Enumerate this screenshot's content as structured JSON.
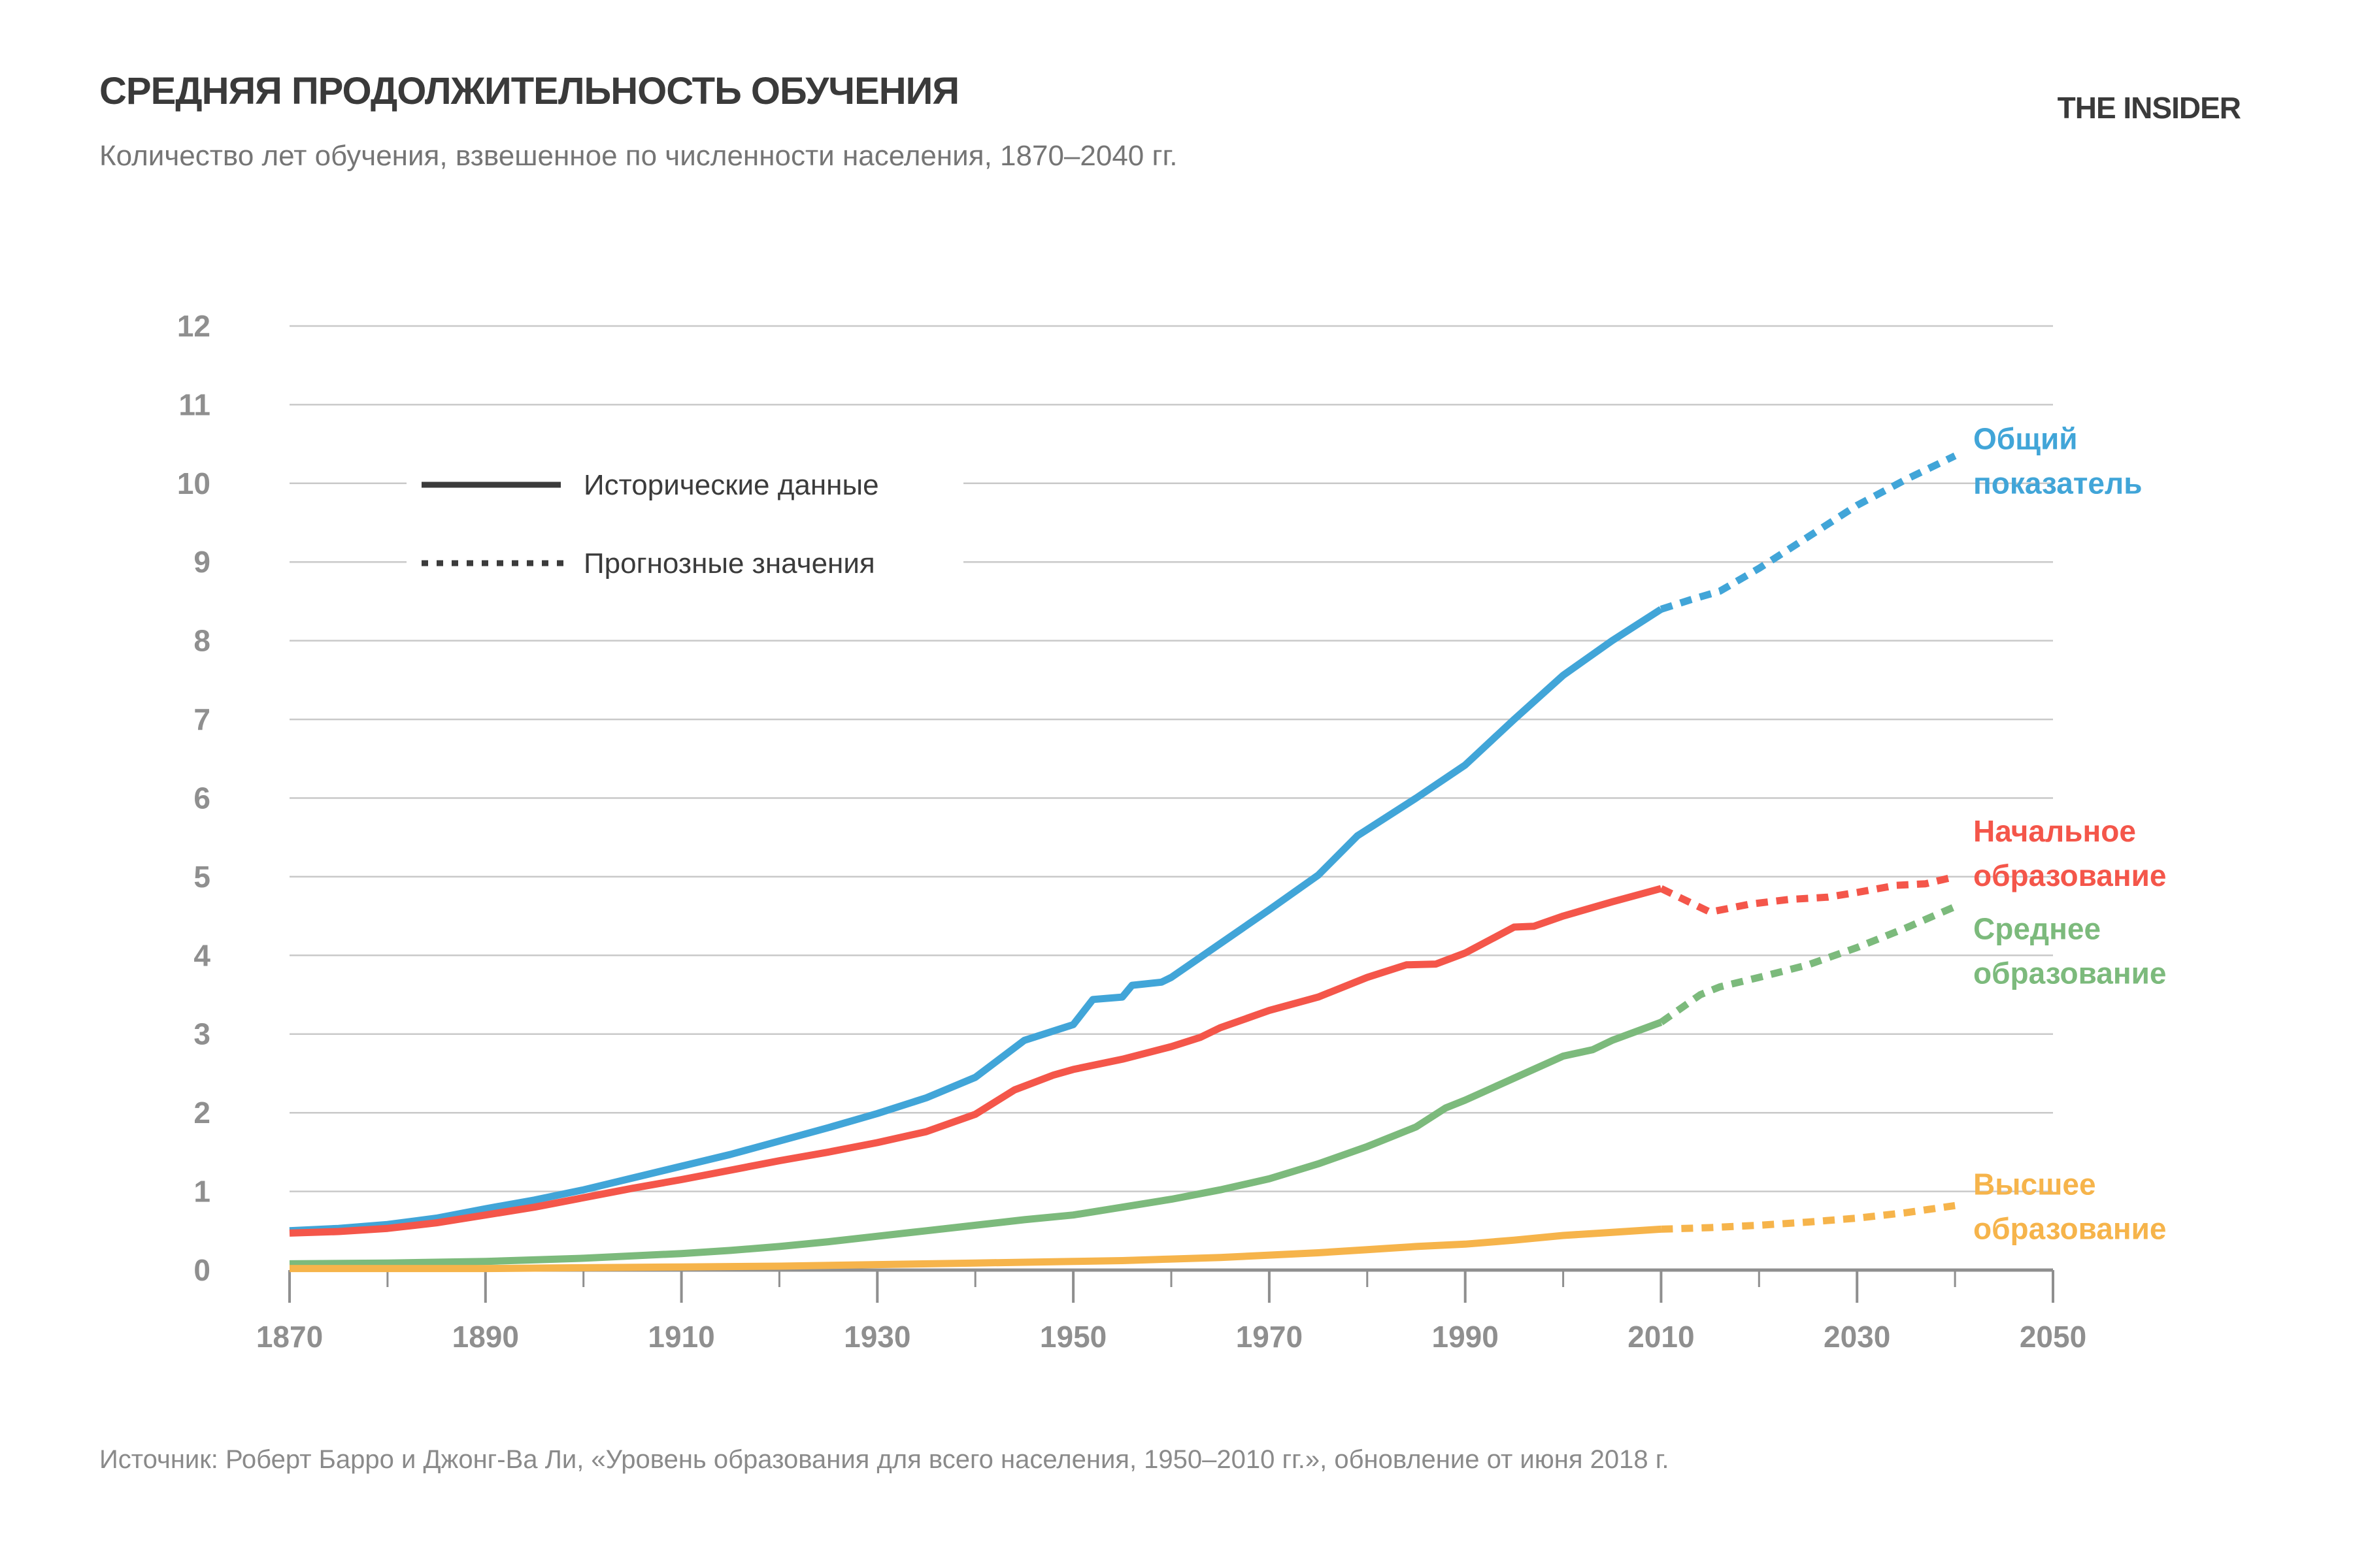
{
  "header": {
    "title": "СРЕДНЯЯ ПРОДОЛЖИТЕЛЬНОСТЬ ОБУЧЕНИЯ",
    "subtitle": "Количество лет обучения, взвешенное по численности населения, 1870–2040 гг.",
    "logo": "THE INSIDER"
  },
  "legend": {
    "historical": "Исторические данные",
    "forecast": "Прогнозные значения"
  },
  "source": "Источник: Роберт Барро и Джонг-Ва Ли, «Уровень образования для всего населения, 1950–2010 гг.», обновление от июня 2018 г.",
  "colors": {
    "total": "#41A5D8",
    "primary": "#F4564A",
    "secondary": "#7CBA7C",
    "tertiary": "#F6B44B",
    "grid": "#C9C9C9",
    "axis": "#8F8F8F",
    "text_dark": "#3A3A3A",
    "text_gray": "#8A8A8A"
  },
  "chart_data": {
    "type": "line",
    "title": "СРЕДНЯЯ ПРОДОЛЖИТЕЛЬНОСТЬ ОБУЧЕНИЯ",
    "subtitle": "Количество лет обучения, взвешенное по численности населения, 1870–2040 гг.",
    "xlabel": "",
    "ylabel": "",
    "x_range": [
      1870,
      2050
    ],
    "y_range": [
      0,
      12
    ],
    "grid": "horizontal",
    "legend_position": "top-left-inside",
    "x_ticks_labeled": [
      1870,
      1890,
      1910,
      1930,
      1950,
      1970,
      1990,
      2010,
      2030,
      2050
    ],
    "x_ticks_minor": [
      1880,
      1900,
      1920,
      1940,
      1960,
      1980,
      2000,
      2020,
      2040
    ],
    "y_ticks": [
      0,
      1,
      2,
      3,
      4,
      5,
      6,
      7,
      8,
      9,
      10,
      11,
      12
    ],
    "line_styles": {
      "historical": "solid",
      "forecast": "dotted"
    },
    "series": [
      {
        "id": "total",
        "label": "Общий показатель",
        "label_lines": [
          "Общий",
          "показатель"
        ],
        "color": "#41A5D8",
        "historical": [
          [
            1870,
            0.5
          ],
          [
            1875,
            0.53
          ],
          [
            1880,
            0.58
          ],
          [
            1885,
            0.66
          ],
          [
            1890,
            0.78
          ],
          [
            1895,
            0.89
          ],
          [
            1900,
            1.02
          ],
          [
            1905,
            1.17
          ],
          [
            1910,
            1.32
          ],
          [
            1915,
            1.47
          ],
          [
            1920,
            1.64
          ],
          [
            1925,
            1.81
          ],
          [
            1930,
            1.99
          ],
          [
            1935,
            2.19
          ],
          [
            1940,
            2.45
          ],
          [
            1945,
            2.92
          ],
          [
            1950,
            3.12
          ],
          [
            1952,
            3.44
          ],
          [
            1955,
            3.47
          ],
          [
            1956,
            3.62
          ],
          [
            1959,
            3.66
          ],
          [
            1960,
            3.72
          ],
          [
            1965,
            4.15
          ],
          [
            1970,
            4.58
          ],
          [
            1975,
            5.02
          ],
          [
            1979,
            5.52
          ],
          [
            1985,
            6.0
          ],
          [
            1990,
            6.42
          ],
          [
            1995,
            7.0
          ],
          [
            2000,
            7.56
          ],
          [
            2005,
            8.0
          ],
          [
            2010,
            8.4
          ]
        ],
        "forecast": [
          [
            2010,
            8.4
          ],
          [
            2013,
            8.52
          ],
          [
            2016,
            8.63
          ],
          [
            2020,
            8.92
          ],
          [
            2025,
            9.32
          ],
          [
            2030,
            9.72
          ],
          [
            2035,
            10.05
          ],
          [
            2040,
            10.35
          ]
        ]
      },
      {
        "id": "primary",
        "label": "Начальное образование",
        "label_lines": [
          "Начальное",
          "образование"
        ],
        "color": "#F4564A",
        "historical": [
          [
            1870,
            0.47
          ],
          [
            1875,
            0.49
          ],
          [
            1880,
            0.53
          ],
          [
            1885,
            0.6
          ],
          [
            1890,
            0.7
          ],
          [
            1895,
            0.8
          ],
          [
            1900,
            0.92
          ],
          [
            1905,
            1.04
          ],
          [
            1910,
            1.15
          ],
          [
            1915,
            1.27
          ],
          [
            1920,
            1.39
          ],
          [
            1925,
            1.5
          ],
          [
            1930,
            1.62
          ],
          [
            1935,
            1.76
          ],
          [
            1940,
            1.98
          ],
          [
            1944,
            2.29
          ],
          [
            1948,
            2.48
          ],
          [
            1950,
            2.55
          ],
          [
            1955,
            2.68
          ],
          [
            1960,
            2.84
          ],
          [
            1963,
            2.96
          ],
          [
            1965,
            3.08
          ],
          [
            1970,
            3.3
          ],
          [
            1975,
            3.47
          ],
          [
            1980,
            3.72
          ],
          [
            1984,
            3.88
          ],
          [
            1987,
            3.89
          ],
          [
            1990,
            4.03
          ],
          [
            1995,
            4.36
          ],
          [
            1997,
            4.37
          ],
          [
            2000,
            4.5
          ],
          [
            2005,
            4.68
          ],
          [
            2010,
            4.85
          ]
        ],
        "forecast": [
          [
            2010,
            4.85
          ],
          [
            2015,
            4.55
          ],
          [
            2019,
            4.65
          ],
          [
            2023,
            4.71
          ],
          [
            2027,
            4.74
          ],
          [
            2030,
            4.8
          ],
          [
            2034,
            4.89
          ],
          [
            2037,
            4.91
          ],
          [
            2040,
            5.0
          ]
        ]
      },
      {
        "id": "secondary",
        "label": "Среднее образование",
        "label_lines": [
          "Среднее",
          "образование"
        ],
        "color": "#7CBA7C",
        "historical": [
          [
            1870,
            0.08
          ],
          [
            1880,
            0.09
          ],
          [
            1890,
            0.11
          ],
          [
            1900,
            0.15
          ],
          [
            1910,
            0.21
          ],
          [
            1915,
            0.25
          ],
          [
            1920,
            0.3
          ],
          [
            1925,
            0.36
          ],
          [
            1930,
            0.43
          ],
          [
            1935,
            0.5
          ],
          [
            1940,
            0.57
          ],
          [
            1945,
            0.64
          ],
          [
            1950,
            0.7
          ],
          [
            1955,
            0.8
          ],
          [
            1960,
            0.9
          ],
          [
            1965,
            1.02
          ],
          [
            1970,
            1.16
          ],
          [
            1975,
            1.35
          ],
          [
            1980,
            1.57
          ],
          [
            1985,
            1.82
          ],
          [
            1988,
            2.06
          ],
          [
            1990,
            2.16
          ],
          [
            1995,
            2.44
          ],
          [
            2000,
            2.72
          ],
          [
            2003,
            2.8
          ],
          [
            2005,
            2.92
          ],
          [
            2010,
            3.15
          ]
        ],
        "forecast": [
          [
            2010,
            3.15
          ],
          [
            2014,
            3.5
          ],
          [
            2016,
            3.6
          ],
          [
            2020,
            3.72
          ],
          [
            2025,
            3.88
          ],
          [
            2030,
            4.1
          ],
          [
            2035,
            4.35
          ],
          [
            2040,
            4.62
          ]
        ]
      },
      {
        "id": "tertiary",
        "label": "Высшее образование",
        "label_lines": [
          "Высшее",
          "образование"
        ],
        "color": "#F6B44B",
        "historical": [
          [
            1870,
            0.02
          ],
          [
            1890,
            0.02
          ],
          [
            1900,
            0.03
          ],
          [
            1910,
            0.04
          ],
          [
            1920,
            0.05
          ],
          [
            1930,
            0.07
          ],
          [
            1940,
            0.09
          ],
          [
            1950,
            0.11
          ],
          [
            1955,
            0.12
          ],
          [
            1960,
            0.14
          ],
          [
            1965,
            0.16
          ],
          [
            1970,
            0.19
          ],
          [
            1975,
            0.22
          ],
          [
            1980,
            0.26
          ],
          [
            1985,
            0.3
          ],
          [
            1990,
            0.33
          ],
          [
            1995,
            0.38
          ],
          [
            2000,
            0.44
          ],
          [
            2005,
            0.48
          ],
          [
            2010,
            0.52
          ]
        ],
        "forecast": [
          [
            2010,
            0.52
          ],
          [
            2015,
            0.54
          ],
          [
            2020,
            0.57
          ],
          [
            2025,
            0.61
          ],
          [
            2030,
            0.66
          ],
          [
            2035,
            0.73
          ],
          [
            2040,
            0.82
          ]
        ]
      }
    ]
  }
}
